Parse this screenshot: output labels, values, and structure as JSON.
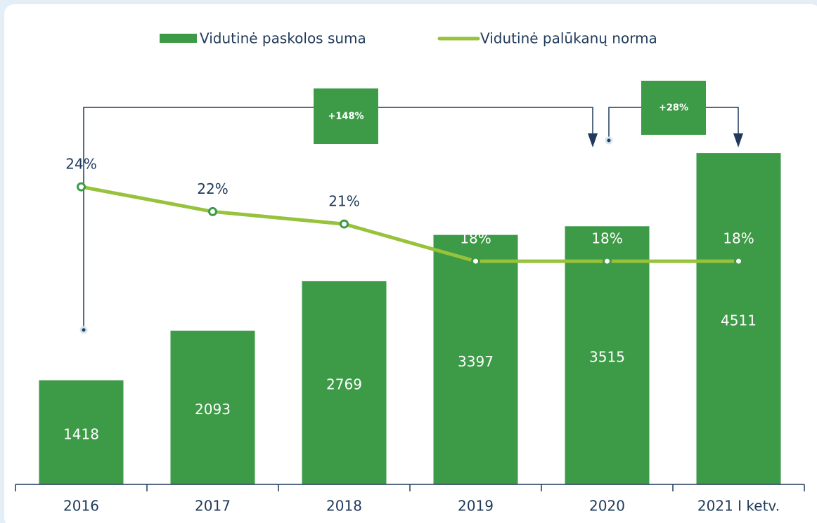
{
  "chart_data": {
    "type": "bar_line",
    "categories": [
      "2016",
      "2017",
      "2018",
      "2019",
      "2020",
      "2021 I ketv."
    ],
    "series": [
      {
        "name": "Vidutinė paskolos suma",
        "type": "bar",
        "color": "#3d9a47",
        "values": [
          1418,
          2093,
          2769,
          3397,
          3515,
          4511
        ]
      },
      {
        "name": "Vidutinė palūkanų norma",
        "type": "line",
        "axis": "y2",
        "color": "#97c23c",
        "values": [
          24,
          22,
          21,
          18,
          18,
          18
        ],
        "value_labels": [
          "24%",
          "22%",
          "21%",
          "18%",
          "18%",
          "18%"
        ]
      }
    ],
    "ylim": [
      0,
      6500
    ],
    "y2lim": [
      0,
      38.5
    ],
    "annotations": [
      "+148%",
      "+28%"
    ]
  }
}
